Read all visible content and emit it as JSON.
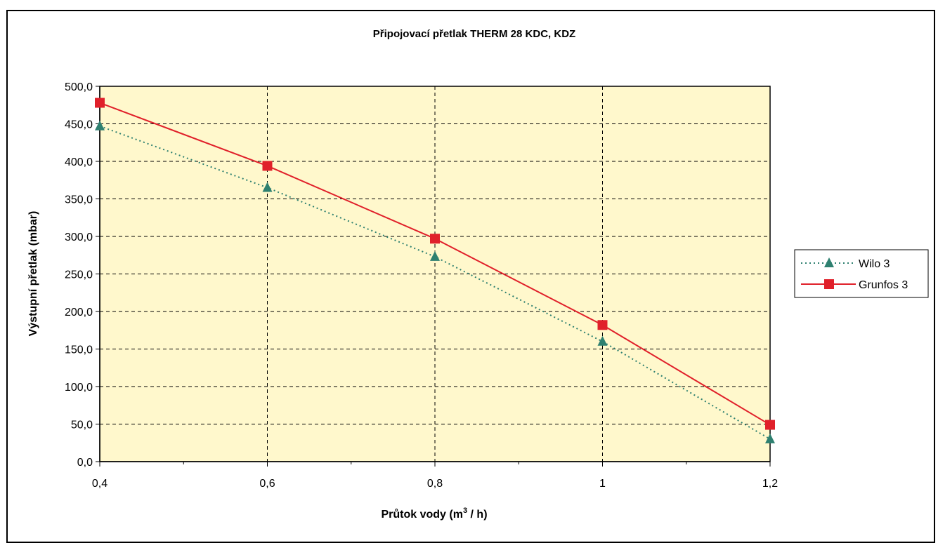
{
  "chart_data": {
    "type": "line",
    "title": "Připojovací přetlak THERM 28 KDC, KDZ",
    "ylabel": "Výstupní přetlak (mbar)",
    "xlabel": {
      "prefix": "Průtok vody (m",
      "superscript": "3",
      "suffix": " / h)"
    },
    "x": [
      0.4,
      0.6,
      0.8,
      1.0,
      1.2
    ],
    "x_tick_labels": [
      "0,4",
      "0,6",
      "0,8",
      "1",
      "1,2"
    ],
    "xlim": [
      0.4,
      1.2
    ],
    "ylim": [
      0,
      500
    ],
    "y_ticks": [
      0,
      50,
      100,
      150,
      200,
      250,
      300,
      350,
      400,
      450,
      500
    ],
    "y_tick_labels": [
      "0,0",
      "50,0",
      "100,0",
      "150,0",
      "200,0",
      "250,0",
      "300,0",
      "350,0",
      "400,0",
      "450,0",
      "500,0"
    ],
    "grid": true,
    "legend_position": "right",
    "plot_background": "#fff8cc",
    "series": [
      {
        "name": "Wilo 3",
        "values": [
          447,
          365,
          273,
          160,
          30
        ],
        "color": "#2e8070",
        "line_style": "dotted",
        "marker": "triangle"
      },
      {
        "name": "Grunfos 3",
        "values": [
          478,
          394,
          297,
          182,
          49
        ],
        "color": "#e0202a",
        "line_style": "solid",
        "marker": "square"
      }
    ]
  }
}
